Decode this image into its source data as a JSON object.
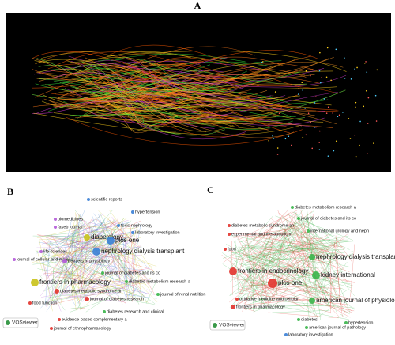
{
  "figure": {
    "panels": [
      {
        "label": "A"
      },
      {
        "label": "B",
        "logo": "VOSviewer",
        "nodes": [
          "scientific reports",
          "hypertension",
          "biomedicines",
          "faseb journal",
          "toxic nephrology",
          "laboratory investigation",
          "diabetology",
          "plos one",
          "life sciences",
          "journal of cellular and molecu",
          "nephrology dialysis transplant",
          "frontiers in physiology",
          "journal of diabetes and its co",
          "frontiers in pharmacology",
          "diabetes metabolism research a",
          "diabetes metabolic syndrome an",
          "journal of diabetes research",
          "food function",
          "journal of renal nutrition",
          "diabetes research and clinical",
          "evidence-based complementary a",
          "journal of ethnopharmacology"
        ]
      },
      {
        "label": "C",
        "logo": "VOSviewer",
        "nodes": [
          "diabetes metabolism research a",
          "journal of diabetes and its co",
          "diabetes metabolic syndrome an",
          "international urology and neph",
          "experimental and therapeutic m",
          "food",
          "nephrology dialysis transplant",
          "frontiers in endocrinology",
          "kidney international",
          "plos one",
          "oxidative medicine and cellular",
          "american journal of physiology",
          "frontiers in pharmacology",
          "diabetes",
          "hypertension",
          "american journal of pathology",
          "laboratory investigation"
        ]
      }
    ]
  }
}
